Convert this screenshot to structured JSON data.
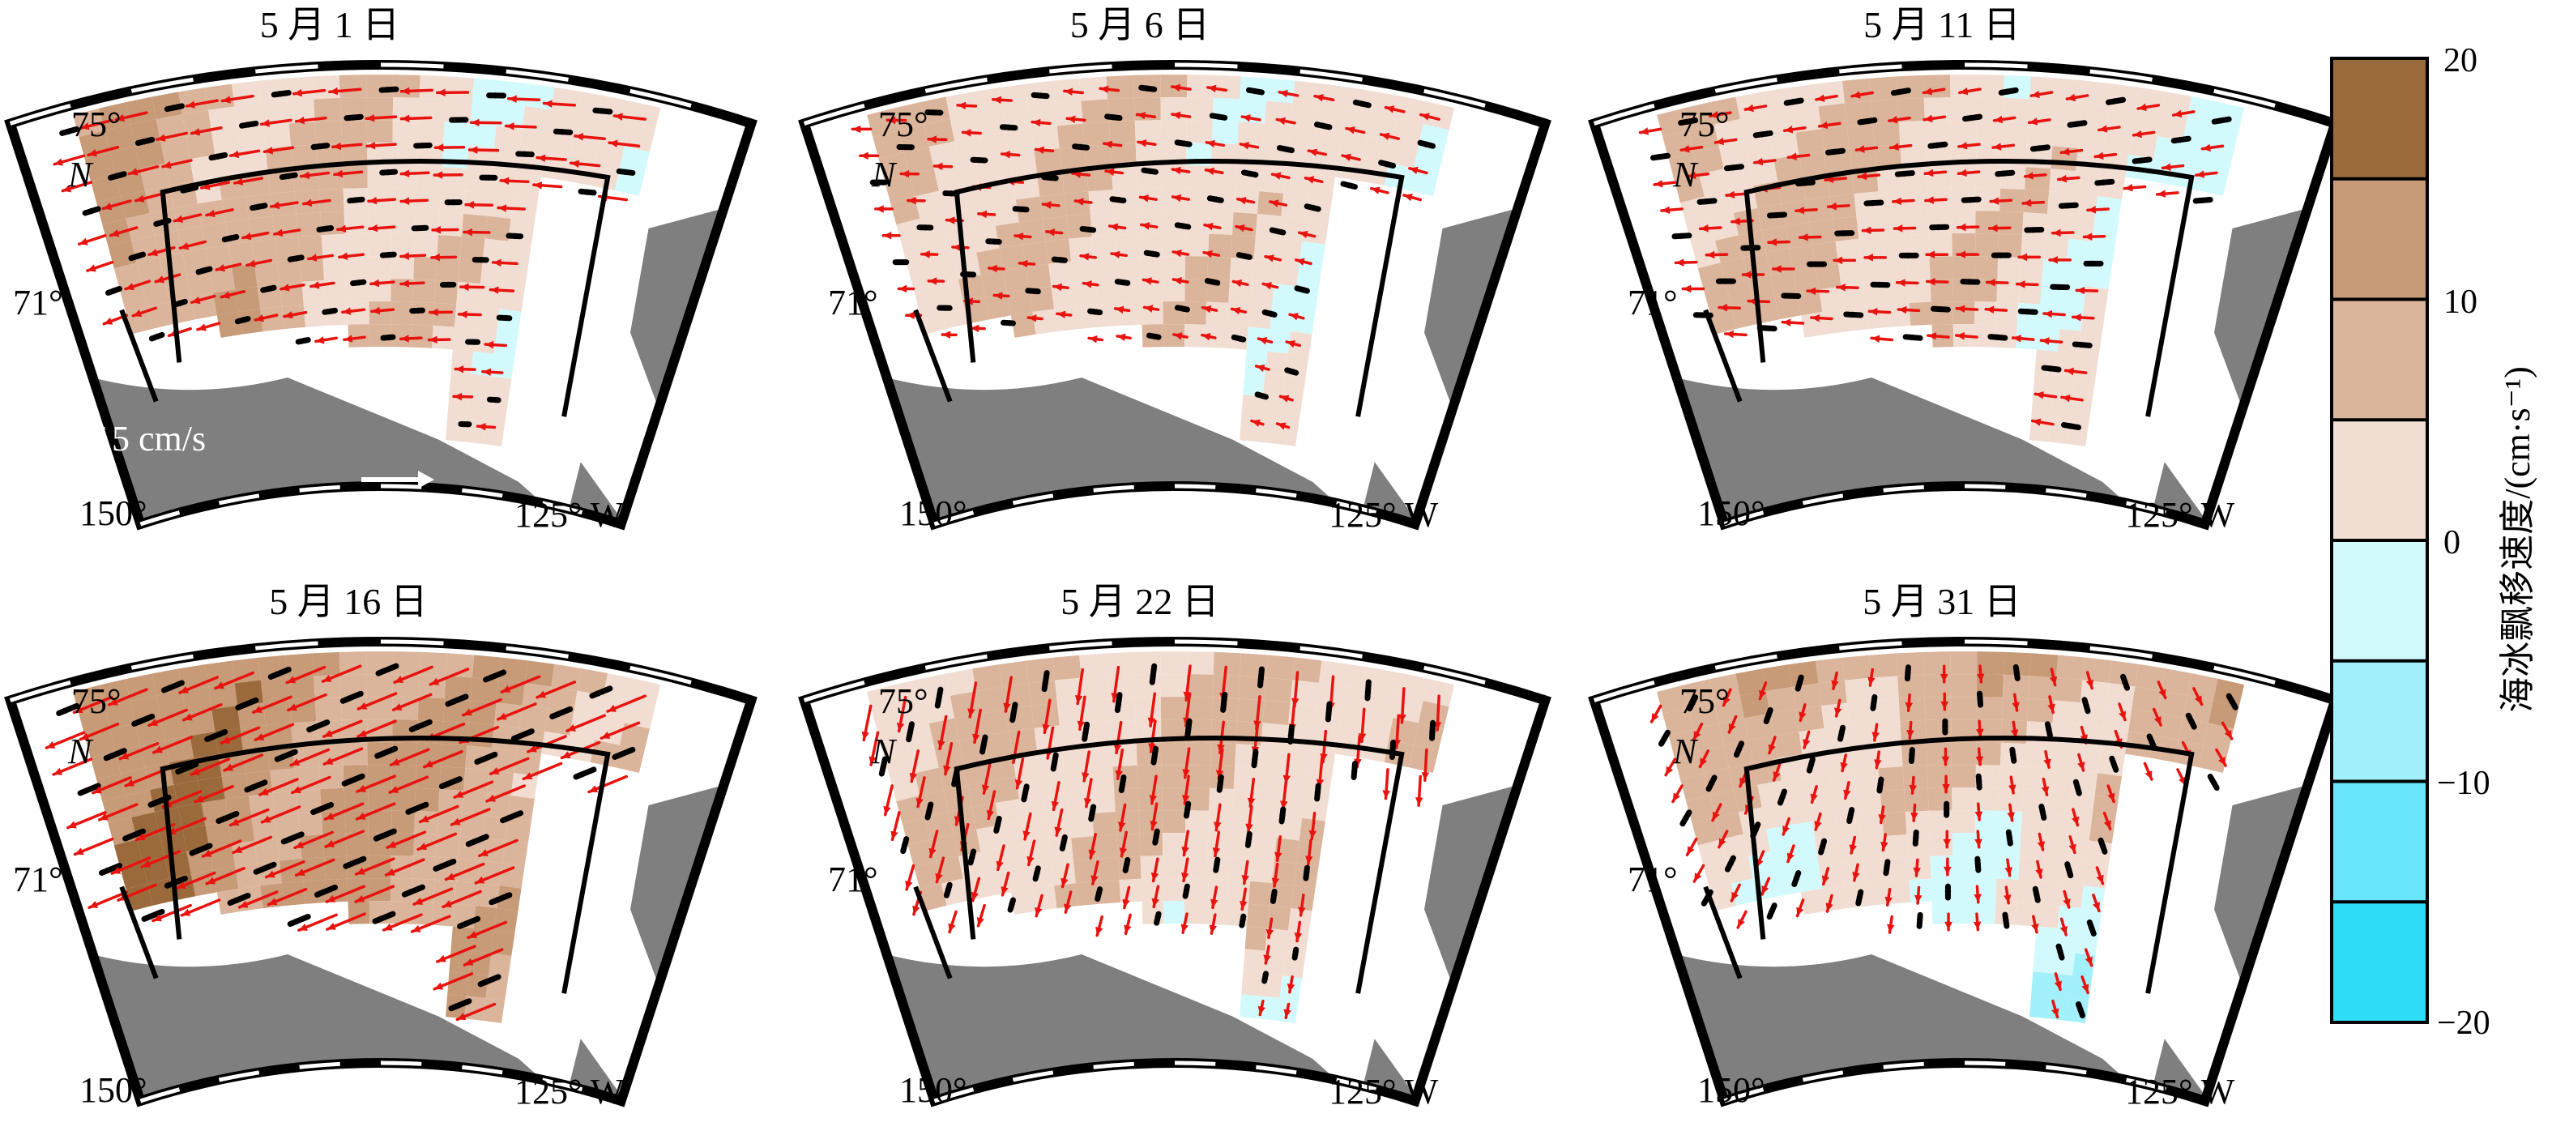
{
  "figure": {
    "panels": [
      {
        "title": "5 月 1 日",
        "pattern": "may1"
      },
      {
        "title": "5 月 6 日",
        "pattern": "may6"
      },
      {
        "title": "5 月 11 日",
        "pattern": "may11"
      },
      {
        "title": "5 月 16 日",
        "pattern": "may16"
      },
      {
        "title": "5 月 22 日",
        "pattern": "may22"
      },
      {
        "title": "5 月 31 日",
        "pattern": "may31"
      }
    ],
    "map_labels": {
      "lat_75": "75°",
      "lat_71": "71°",
      "north": "N",
      "lon_150": "150°",
      "lon_125w": "125° W"
    },
    "scale_label": "15 cm/s",
    "colors": {
      "land": "#7f7f7f",
      "frame": "#000000",
      "arrow_red": "#e8130f",
      "arrow_black": "#000000",
      "scale_arrow": "#ffffff"
    },
    "colorbar": {
      "title": "海冰飘移速度/(cm·s⁻¹)",
      "ticks": [
        "20",
        "10",
        "0",
        "−10",
        "−20"
      ],
      "bins": [
        {
          "from": 15,
          "to": 20,
          "color": "#9b6a3c"
        },
        {
          "from": 10,
          "to": 15,
          "color": "#c79a78"
        },
        {
          "from": 5,
          "to": 10,
          "color": "#dbb59b"
        },
        {
          "from": 0,
          "to": 5,
          "color": "#f2ddd2"
        },
        {
          "from": -5,
          "to": 0,
          "color": "#d2fafd"
        },
        {
          "from": -10,
          "to": -5,
          "color": "#a2f0fb"
        },
        {
          "from": -15,
          "to": -10,
          "color": "#6ae6fa"
        },
        {
          "from": -20,
          "to": -15,
          "color": "#2edcf7"
        }
      ]
    }
  }
}
